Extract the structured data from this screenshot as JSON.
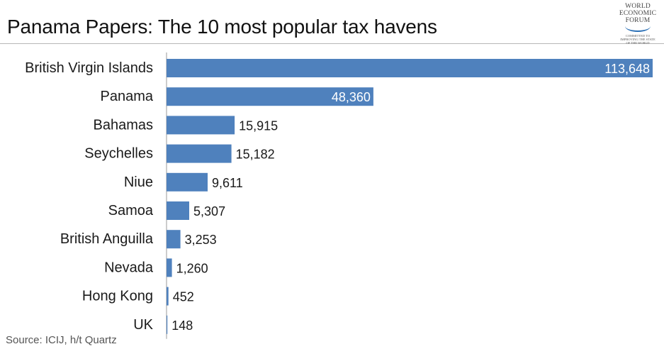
{
  "header": {
    "title": "Panama Papers: The 10 most popular tax havens"
  },
  "logo": {
    "line1": "WORLD",
    "line2": "ECONOMIC",
    "line3": "FORUM",
    "tagline1": "COMMITTED TO",
    "tagline2": "IMPROVING THE STATE",
    "tagline3": "OF THE WORLD"
  },
  "footer": {
    "source": "Source: ICIJ, h/t Quartz"
  },
  "colors": {
    "bar": "#4f81bd",
    "axis": "#999999",
    "label": "#1a1a1a",
    "inside_label": "#ffffff"
  },
  "chart_data": {
    "type": "bar",
    "orientation": "horizontal",
    "title": "Panama Papers: The 10 most popular tax havens",
    "xlabel": "",
    "ylabel": "",
    "grid": false,
    "legend": "none",
    "xlim": [
      0,
      113648
    ],
    "categories": [
      "British Virgin Islands",
      "Panama",
      "Bahamas",
      "Seychelles",
      "Niue",
      "Samoa",
      "British Anguilla",
      "Nevada",
      "Hong Kong",
      "UK"
    ],
    "values": [
      113648,
      48360,
      15915,
      15182,
      9611,
      5307,
      3253,
      1260,
      452,
      148
    ],
    "value_labels": [
      "113,648",
      "48,360",
      "15,915",
      "15,182",
      "9,611",
      "5,307",
      "3,253",
      "1,260",
      "452",
      "148"
    ]
  }
}
